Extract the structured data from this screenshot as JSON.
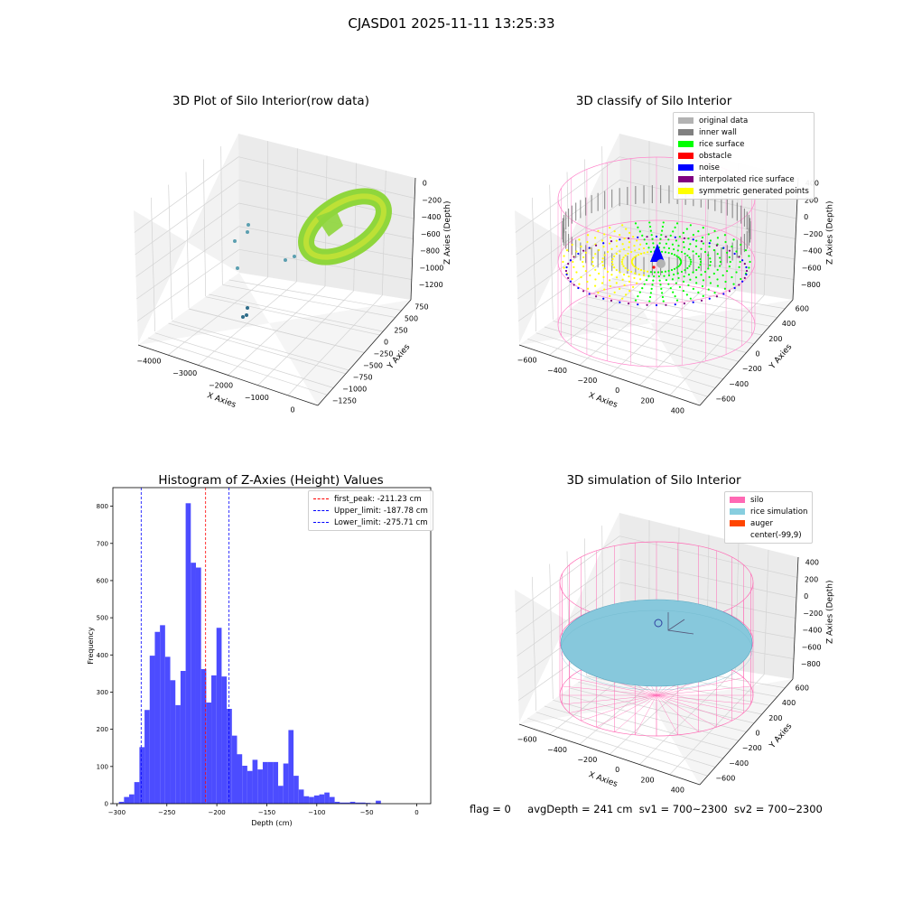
{
  "figure_title": "CJASD01 2025-11-11 13:25:33",
  "footer": {
    "flag": "flag = 0",
    "avg_depth": "avgDepth = 241 cm",
    "sv1": "sv1 = 700~2300",
    "sv2": "sv2 = 700~2300"
  },
  "chart_data": [
    {
      "type": "scatter",
      "title": "3D Plot of Silo Interior(row data)",
      "xlabel": "X Axies",
      "ylabel": "Y Axies",
      "zlabel": "Z Axies (Depth)",
      "x_ticks": [
        "−4000",
        "−3000",
        "−2000",
        "−1000",
        "0"
      ],
      "y_ticks": [
        "−1250",
        "−1000",
        "−750",
        "−500",
        "−250",
        "0",
        "250",
        "500",
        "750"
      ],
      "z_ticks": [
        "0",
        "−200",
        "−400",
        "−600",
        "−800",
        "−1000",
        "−1200"
      ],
      "colors": {
        "surface": "#8fd63c",
        "surface_light": "#c8e435",
        "outliers": "#5b9fb0",
        "outliers_dark": "#2f6d8a"
      }
    },
    {
      "type": "scatter",
      "title": "3D classify of Silo Interior",
      "xlabel": "X Axies",
      "ylabel": "Y Axies",
      "zlabel": "Z Axies (Depth)",
      "x_ticks": [
        "−600",
        "−400",
        "−200",
        "0",
        "200",
        "400"
      ],
      "y_ticks": [
        "−600",
        "−400",
        "−200",
        "0",
        "200",
        "400",
        "600"
      ],
      "z_ticks": [
        "400",
        "200",
        "0",
        "−200",
        "−400",
        "−600",
        "−800"
      ],
      "legend": [
        {
          "label": "original data",
          "color": "#b3b3b3"
        },
        {
          "label": "inner wall",
          "color": "#808080"
        },
        {
          "label": "rice surface",
          "color": "#00ff00"
        },
        {
          "label": "obstacle",
          "color": "#ff0000"
        },
        {
          "label": "noise",
          "color": "#0000ff"
        },
        {
          "label": "interpolated rice surface",
          "color": "#800080"
        },
        {
          "label": "symmetric generated points",
          "color": "#ffff00"
        }
      ],
      "colors": {
        "silo_wire": "#ff88cc"
      }
    },
    {
      "type": "bar",
      "title": "Histogram of Z-Axies (Height) Values",
      "xlabel": "Depth (cm)",
      "ylabel": "Frequency",
      "xlim": [
        -304,
        14
      ],
      "ylim": [
        0,
        850
      ],
      "x_ticks": [
        -300,
        -250,
        -200,
        -150,
        -100,
        -50,
        0
      ],
      "y_ticks": [
        0,
        100,
        200,
        300,
        400,
        500,
        600,
        700,
        800
      ],
      "bin_start": -298,
      "bin_width": 5.14,
      "values": [
        5,
        18,
        25,
        58,
        152,
        252,
        398,
        462,
        480,
        395,
        332,
        265,
        357,
        808,
        648,
        635,
        362,
        272,
        345,
        473,
        342,
        255,
        183,
        133,
        102,
        88,
        118,
        92,
        112,
        112,
        112,
        48,
        108,
        198,
        75,
        38,
        20,
        18,
        22,
        25,
        30,
        18,
        5,
        3,
        3,
        5,
        3,
        3,
        2,
        1,
        8
      ],
      "bar_color": "#4c4cff",
      "vlines": [
        {
          "label": "first_peak: -211.23 cm",
          "x": -211.23,
          "color": "#ff0000"
        },
        {
          "label": "Upper_limit: -187.78 cm",
          "x": -187.78,
          "color": "#0000ff"
        },
        {
          "label": "Lower_limit: -275.71 cm",
          "x": -275.71,
          "color": "#0000ff"
        }
      ],
      "legend_position": "top-right"
    },
    {
      "type": "scatter",
      "title": "3D simulation of Silo Interior",
      "xlabel": "X Axies",
      "ylabel": "Y Axies",
      "zlabel": "Z Axies (Depth)",
      "x_ticks": [
        "−600",
        "−400",
        "−200",
        "0",
        "200",
        "400"
      ],
      "y_ticks": [
        "−600",
        "−400",
        "−200",
        "0",
        "200",
        "400",
        "600"
      ],
      "z_ticks": [
        "400",
        "200",
        "0",
        "−200",
        "−400",
        "−600",
        "−800"
      ],
      "legend": [
        {
          "label": "silo",
          "color": "#ff69b4"
        },
        {
          "label": "rice simulation",
          "color": "#87cedf"
        },
        {
          "label": "auger",
          "color": "#ff4500"
        },
        {
          "label": "center(-99,9)",
          "color": ""
        }
      ],
      "colors": {
        "rice": "#87c8dc",
        "silo_wire": "#ff69b4"
      }
    }
  ]
}
